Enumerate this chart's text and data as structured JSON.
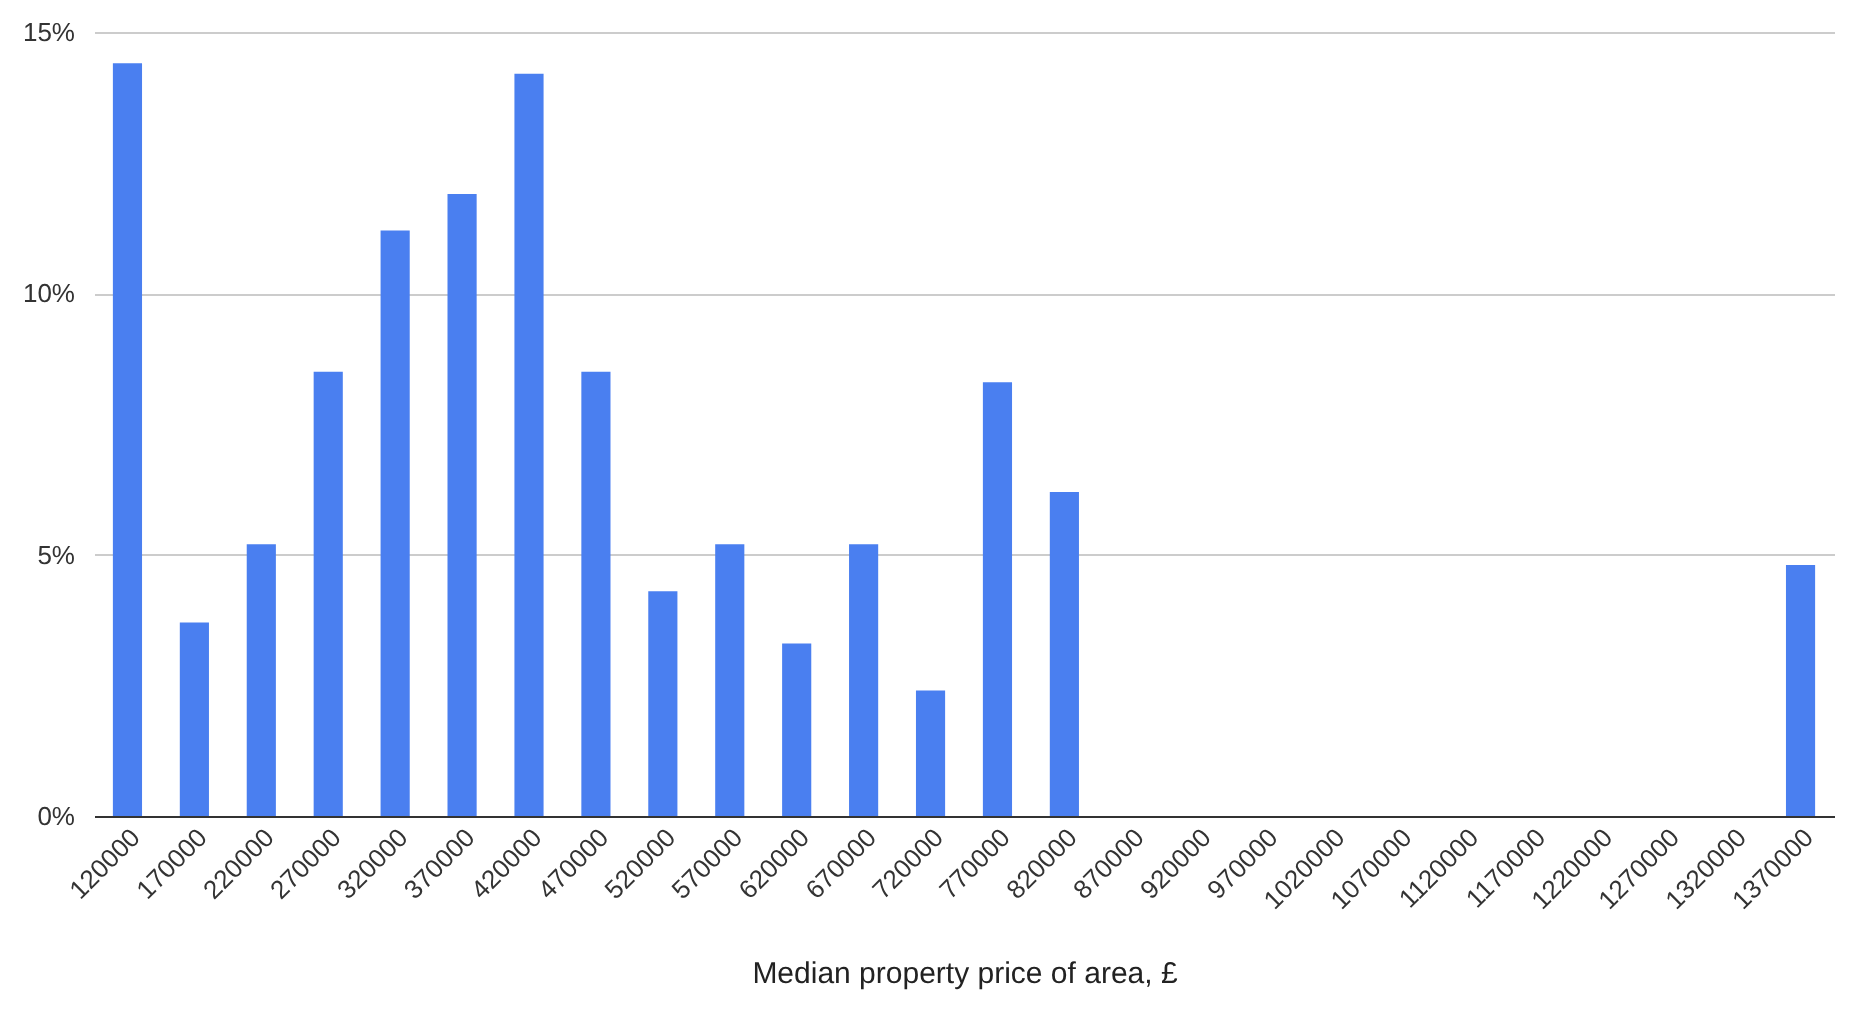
{
  "chart_data": {
    "type": "bar",
    "xlabel": "Median property price of area, £",
    "categories": [
      "120000",
      "170000",
      "220000",
      "270000",
      "320000",
      "370000",
      "420000",
      "470000",
      "520000",
      "570000",
      "620000",
      "670000",
      "720000",
      "770000",
      "820000",
      "870000",
      "920000",
      "970000",
      "1020000",
      "1070000",
      "1120000",
      "1170000",
      "1220000",
      "1270000",
      "1320000",
      "1370000"
    ],
    "values": [
      14.4,
      3.7,
      5.2,
      8.5,
      11.2,
      11.9,
      14.2,
      8.5,
      4.3,
      5.2,
      3.3,
      5.2,
      2.4,
      8.3,
      6.2,
      0,
      0,
      0,
      0,
      0,
      0,
      0,
      0,
      0,
      0,
      4.8
    ],
    "color": "#4a7ff0",
    "ylim": [
      0,
      15
    ],
    "yticks": [
      {
        "value": 0,
        "label": "0%"
      },
      {
        "value": 5,
        "label": "5%"
      },
      {
        "value": 10,
        "label": "10%"
      },
      {
        "value": 15,
        "label": "15%"
      }
    ],
    "grid": "y"
  }
}
